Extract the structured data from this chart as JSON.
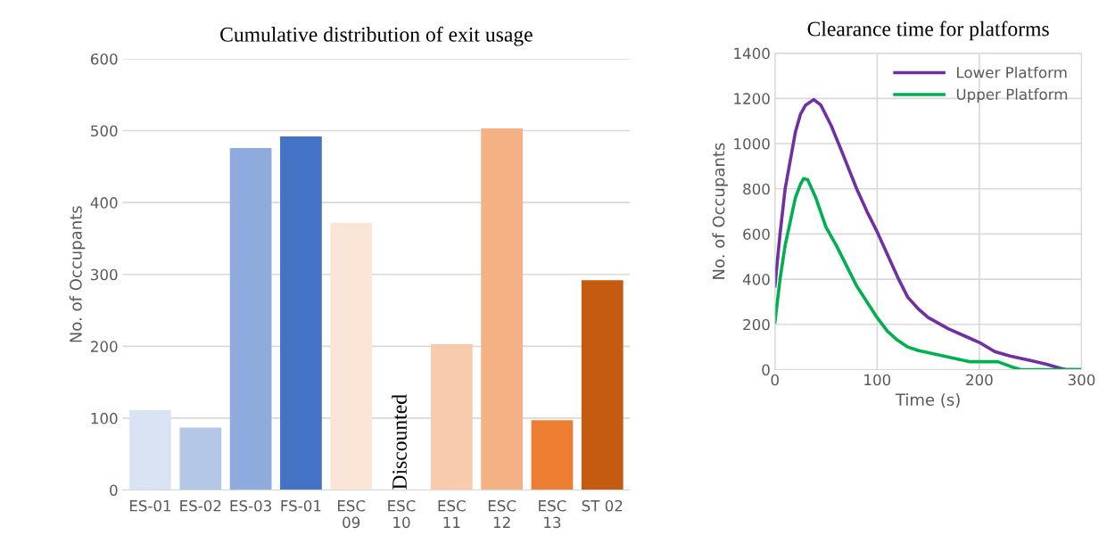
{
  "chart_data": [
    {
      "type": "bar",
      "title": "Cumulative distribution of exit usage",
      "ylabel": "No. of Occupants",
      "categories": [
        "ES-01",
        "ES-02",
        "ES-03",
        "FS-01",
        "ESC\n09",
        "ESC\n10",
        "ESC\n11",
        "ESC\n12",
        "ESC\n13",
        "ST 02"
      ],
      "values": [
        111,
        87,
        476,
        492,
        372,
        null,
        203,
        503,
        97,
        292
      ],
      "colors": [
        "#dae3f3",
        "#b4c7e7",
        "#8faadc",
        "#4472c4",
        "#fbe5d6",
        "#ffffff",
        "#f8cbad",
        "#f4b183",
        "#ed7d31",
        "#c55a11"
      ],
      "ylim": [
        0,
        600
      ],
      "yticks": [
        0,
        100,
        200,
        300,
        400,
        500,
        600
      ],
      "grid": "y",
      "legend": false,
      "annotations": [
        "Discounted"
      ]
    },
    {
      "type": "line",
      "title": "Clearance time for platforms",
      "xlabel": "Time (s)",
      "ylabel": "No. of Occupants",
      "xlim": [
        0,
        300
      ],
      "xticks": [
        0,
        100,
        200,
        300
      ],
      "ylim": [
        0,
        1400
      ],
      "yticks": [
        0,
        200,
        400,
        600,
        800,
        1000,
        1200,
        1400
      ],
      "grid": true,
      "legend": "top right",
      "marker": "none",
      "line_style": "solid",
      "series": [
        {
          "name": "Lower Platform",
          "color": "#7030a0",
          "x": [
            0,
            5,
            10,
            20,
            25,
            30,
            38,
            45,
            55,
            65,
            80,
            90,
            100,
            110,
            120,
            130,
            140,
            150,
            170,
            190,
            200,
            215,
            230,
            250,
            265,
            280,
            285,
            300
          ],
          "values": [
            370,
            600,
            800,
            1050,
            1130,
            1170,
            1195,
            1170,
            1080,
            970,
            800,
            700,
            610,
            510,
            410,
            320,
            270,
            230,
            180,
            140,
            120,
            80,
            60,
            40,
            25,
            5,
            0,
            0
          ]
        },
        {
          "name": "Upper Platform",
          "color": "#00b050",
          "x": [
            0,
            5,
            10,
            20,
            25,
            28,
            32,
            40,
            50,
            60,
            70,
            80,
            90,
            100,
            110,
            120,
            130,
            140,
            150,
            170,
            190,
            200,
            210,
            218,
            230,
            240,
            300
          ],
          "values": [
            210,
            400,
            550,
            760,
            820,
            845,
            840,
            760,
            630,
            550,
            460,
            370,
            300,
            230,
            170,
            130,
            100,
            85,
            75,
            55,
            35,
            35,
            35,
            35,
            15,
            0,
            0
          ]
        }
      ]
    }
  ]
}
